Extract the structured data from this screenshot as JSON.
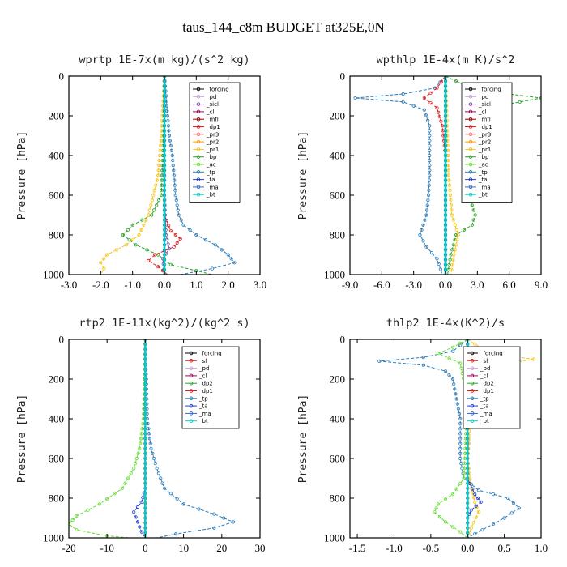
{
  "title": "taus_144_c8m  BUDGET at325E,0N",
  "chart_data": [
    {
      "type": "line",
      "title": "wprtp  1E-7x(m kg)/(s^2 kg)",
      "ylabel": "Pressure [hPa]",
      "xlim": [
        -3,
        3
      ],
      "ylim": [
        0,
        1000
      ],
      "x_ticks": [
        "-3.0",
        "-2.0",
        "-1.0",
        "0.0",
        "1.0",
        "2.0",
        "3.0"
      ],
      "y_ticks": [
        "0",
        "200",
        "400",
        "600",
        "800",
        "1000"
      ],
      "legend": [
        "_forcing",
        "_pd",
        "_sicl",
        "_cl",
        "_mfl",
        "_dp1",
        "_pr3",
        "_pr2",
        "_pr1",
        "_bp",
        "_ac",
        "_tp",
        "_ta",
        "_ma",
        "_bt"
      ],
      "series": [
        {
          "name": "_tp",
          "color": "#2b7bb9",
          "points": [
            [
              0,
              0
            ],
            [
              0.05,
              100
            ],
            [
              0.1,
              200
            ],
            [
              0.15,
              300
            ],
            [
              0.25,
              400
            ],
            [
              0.3,
              500
            ],
            [
              0.35,
              600
            ],
            [
              0.45,
              700
            ],
            [
              0.6,
              750
            ],
            [
              1.0,
              800
            ],
            [
              1.6,
              850
            ],
            [
              2.0,
              900
            ],
            [
              2.2,
              940
            ],
            [
              1.5,
              970
            ],
            [
              0.5,
              1000
            ]
          ]
        },
        {
          "name": "_bp",
          "color": "#2ca02c",
          "points": [
            [
              0,
              0
            ],
            [
              0,
              200
            ],
            [
              -0.05,
              400
            ],
            [
              -0.1,
              600
            ],
            [
              -0.4,
              700
            ],
            [
              -1.0,
              750
            ],
            [
              -1.3,
              800
            ],
            [
              -0.9,
              850
            ],
            [
              -0.2,
              900
            ],
            [
              0.2,
              950
            ],
            [
              1.0,
              980
            ],
            [
              1.5,
              1000
            ]
          ]
        },
        {
          "name": "_pr1",
          "color": "#f5c518",
          "points": [
            [
              0,
              0
            ],
            [
              -0.1,
              300
            ],
            [
              -0.2,
              500
            ],
            [
              -0.35,
              600
            ],
            [
              -0.5,
              700
            ],
            [
              -0.8,
              800
            ],
            [
              -1.2,
              850
            ],
            [
              -1.8,
              900
            ],
            [
              -2.0,
              940
            ],
            [
              -1.9,
              970
            ],
            [
              -2.0,
              1000
            ]
          ]
        },
        {
          "name": "_dp1",
          "color": "#e41a1c",
          "points": [
            [
              0,
              0
            ],
            [
              0,
              700
            ],
            [
              0.2,
              780
            ],
            [
              0.5,
              820
            ],
            [
              0.3,
              860
            ],
            [
              -0.3,
              900
            ],
            [
              -0.5,
              930
            ],
            [
              -0.2,
              960
            ],
            [
              0.1,
              1000
            ]
          ]
        },
        {
          "name": "_sicl",
          "color": "#7b4ea3",
          "points": [
            [
              0,
              0
            ],
            [
              0,
              600
            ],
            [
              0.05,
              800
            ],
            [
              0.15,
              870
            ],
            [
              -0.05,
              920
            ],
            [
              0,
              1000
            ]
          ]
        },
        {
          "name": "_forcing",
          "color": "#000000",
          "points": [
            [
              0,
              0
            ],
            [
              0,
              1000
            ]
          ]
        },
        {
          "name": "_bt",
          "color": "#00cccc",
          "points": [
            [
              0,
              0
            ],
            [
              0,
              1000
            ]
          ]
        }
      ]
    },
    {
      "type": "line",
      "title": "wpthlp  1E-4x(m K)/s^2",
      "ylabel": "Pressure [hPa]",
      "xlim": [
        -9,
        9
      ],
      "ylim": [
        0,
        1000
      ],
      "x_ticks": [
        "-9.0",
        "-6.0",
        "-3.0",
        "0.0",
        "3.0",
        "6.0",
        "9.0"
      ],
      "y_ticks": [
        "0",
        "200",
        "400",
        "600",
        "800",
        "1000"
      ],
      "legend": [
        "_forcing",
        "_pd",
        "_sicl",
        "_cl",
        "_mfl",
        "_dp1",
        "_pr3",
        "_pr2",
        "_pr1",
        "_bp",
        "_ac",
        "_tp",
        "_ta",
        "_ma",
        "_bt"
      ],
      "series": [
        {
          "name": "_tp",
          "color": "#2b7bb9",
          "points": [
            [
              0,
              0
            ],
            [
              -1,
              60
            ],
            [
              -4,
              90
            ],
            [
              -8.5,
              110
            ],
            [
              -4,
              130
            ],
            [
              -2,
              170
            ],
            [
              -1.5,
              250
            ],
            [
              -1.5,
              400
            ],
            [
              -1.5,
              500
            ],
            [
              -1.6,
              600
            ],
            [
              -1.8,
              700
            ],
            [
              -2.4,
              800
            ],
            [
              -1.8,
              860
            ],
            [
              -0.8,
              920
            ],
            [
              -0.3,
              1000
            ]
          ]
        },
        {
          "name": "_bp",
          "color": "#2ca02c",
          "points": [
            [
              0,
              0
            ],
            [
              2,
              50
            ],
            [
              6,
              90
            ],
            [
              9,
              110
            ],
            [
              5,
              150
            ],
            [
              2.5,
              220
            ],
            [
              2.5,
              300
            ],
            [
              2.0,
              400
            ],
            [
              2.0,
              500
            ],
            [
              2.2,
              600
            ],
            [
              2.8,
              700
            ],
            [
              2.5,
              750
            ],
            [
              1.0,
              800
            ],
            [
              0.5,
              900
            ],
            [
              0.2,
              1000
            ]
          ]
        },
        {
          "name": "_pr1",
          "color": "#f5c518",
          "points": [
            [
              0,
              0
            ],
            [
              0.3,
              500
            ],
            [
              0.6,
              700
            ],
            [
              1.2,
              800
            ],
            [
              0.8,
              900
            ],
            [
              0.5,
              1000
            ]
          ]
        },
        {
          "name": "_dp1",
          "color": "#e41a1c",
          "points": [
            [
              0,
              0
            ],
            [
              -0.8,
              60
            ],
            [
              -2,
              110
            ],
            [
              -0.8,
              160
            ],
            [
              -0.3,
              250
            ],
            [
              0,
              400
            ],
            [
              0,
              1000
            ]
          ]
        },
        {
          "name": "_sicl",
          "color": "#7b4ea3",
          "points": [
            [
              0,
              0
            ],
            [
              0,
              1000
            ]
          ]
        },
        {
          "name": "_forcing",
          "color": "#000000",
          "points": [
            [
              0,
              0
            ],
            [
              0,
              1000
            ]
          ]
        },
        {
          "name": "_bt",
          "color": "#00cccc",
          "points": [
            [
              0,
              0
            ],
            [
              0,
              1000
            ]
          ]
        }
      ]
    },
    {
      "type": "line",
      "title": "rtp2  1E-11x(kg^2)/(kg^2 s)",
      "ylabel": "Pressure [hPa]",
      "xlim": [
        -20,
        30
      ],
      "ylim": [
        0,
        1000
      ],
      "x_ticks": [
        "-20",
        "-10",
        "0",
        "10",
        "20",
        "30"
      ],
      "y_ticks": [
        "0",
        "200",
        "400",
        "600",
        "800",
        "1000"
      ],
      "legend": [
        "_forcing",
        "_sf",
        "_pd",
        "_cl",
        "_dp2",
        "_dp1",
        "_tp",
        "_ta",
        "_ma",
        "_bt"
      ],
      "series": [
        {
          "name": "_tp",
          "color": "#2b7bb9",
          "points": [
            [
              0,
              0
            ],
            [
              0.5,
              400
            ],
            [
              1.5,
              550
            ],
            [
              3,
              650
            ],
            [
              5,
              750
            ],
            [
              10,
              830
            ],
            [
              18,
              880
            ],
            [
              23,
              920
            ],
            [
              18,
              950
            ],
            [
              8,
              980
            ],
            [
              3,
              1000
            ]
          ]
        },
        {
          "name": "_dp1",
          "color": "#66dd33",
          "points": [
            [
              0,
              0
            ],
            [
              -0.5,
              400
            ],
            [
              -1.5,
              550
            ],
            [
              -3,
              650
            ],
            [
              -6,
              750
            ],
            [
              -12,
              830
            ],
            [
              -18,
              890
            ],
            [
              -20,
              930
            ],
            [
              -18,
              960
            ],
            [
              -10,
              990
            ],
            [
              -4,
              1000
            ]
          ]
        },
        {
          "name": "_ta",
          "color": "#1f3ec9",
          "points": [
            [
              0,
              0
            ],
            [
              0,
              750
            ],
            [
              -1,
              820
            ],
            [
              -3,
              870
            ],
            [
              -2,
              920
            ],
            [
              -1,
              970
            ],
            [
              0,
              1000
            ]
          ]
        },
        {
          "name": "_pd",
          "color": "#ff8800",
          "points": [
            [
              0,
              0
            ],
            [
              0,
              1000
            ]
          ]
        },
        {
          "name": "_forcing",
          "color": "#e41a1c",
          "points": [
            [
              0,
              0
            ],
            [
              0,
              1000
            ]
          ]
        },
        {
          "name": "_bt",
          "color": "#00cccc",
          "points": [
            [
              0,
              0
            ],
            [
              0,
              1000
            ]
          ]
        }
      ]
    },
    {
      "type": "line",
      "title": "thlp2  1E-4x(K^2)/s",
      "ylabel": "Pressure [hPa]",
      "xlim": [
        -1.6,
        1.0
      ],
      "ylim": [
        0,
        1000
      ],
      "x_ticks": [
        "-1.5",
        "-1.0",
        "-0.5",
        "0.0",
        "0.5",
        "1.0"
      ],
      "y_ticks": [
        "0",
        "200",
        "400",
        "600",
        "800",
        "1000"
      ],
      "legend": [
        "_forcing",
        "_sf",
        "_pd",
        "_cl",
        "_dp2",
        "_dp1",
        "_tp",
        "_ta",
        "_ma",
        "_bt"
      ],
      "series": [
        {
          "name": "_tp",
          "color": "#2b7bb9",
          "points": [
            [
              0,
              0
            ],
            [
              -0.2,
              60
            ],
            [
              -0.6,
              90
            ],
            [
              -1.2,
              110
            ],
            [
              -0.6,
              130
            ],
            [
              -0.3,
              160
            ],
            [
              -0.2,
              200
            ],
            [
              -0.1,
              400
            ],
            [
              -0.1,
              600
            ],
            [
              -0.05,
              700
            ],
            [
              0.15,
              760
            ],
            [
              0.55,
              800
            ],
            [
              0.7,
              850
            ],
            [
              0.5,
              900
            ],
            [
              0.2,
              960
            ],
            [
              0,
              1000
            ]
          ]
        },
        {
          "name": "_dp1",
          "color": "#66dd33",
          "points": [
            [
              0,
              0
            ],
            [
              -0.2,
              40
            ],
            [
              -0.4,
              70
            ],
            [
              -0.1,
              120
            ],
            [
              0,
              300
            ],
            [
              -0.05,
              700
            ],
            [
              -0.2,
              780
            ],
            [
              -0.4,
              830
            ],
            [
              -0.45,
              870
            ],
            [
              -0.3,
              920
            ],
            [
              -0.1,
              970
            ],
            [
              0,
              1000
            ]
          ]
        },
        {
          "name": "_pd",
          "color": "#f5c518",
          "points": [
            [
              0,
              0
            ],
            [
              0.3,
              70
            ],
            [
              0.9,
              100
            ],
            [
              0.4,
              130
            ],
            [
              0.1,
              200
            ],
            [
              0,
              600
            ],
            [
              0.05,
              750
            ],
            [
              0.1,
              820
            ],
            [
              0.15,
              870
            ],
            [
              0.05,
              950
            ],
            [
              0,
              1000
            ]
          ]
        },
        {
          "name": "_ta",
          "color": "#1f3ec9",
          "points": [
            [
              0,
              0
            ],
            [
              0,
              700
            ],
            [
              0.1,
              780
            ],
            [
              0.18,
              820
            ],
            [
              0.05,
              860
            ],
            [
              0,
              900
            ],
            [
              0,
              1000
            ]
          ]
        },
        {
          "name": "_forcing",
          "color": "#e41a1c",
          "points": [
            [
              0,
              0
            ],
            [
              0,
              1000
            ]
          ]
        },
        {
          "name": "_bt",
          "color": "#00cccc",
          "points": [
            [
              0,
              0
            ],
            [
              0,
              1000
            ]
          ]
        }
      ]
    }
  ]
}
